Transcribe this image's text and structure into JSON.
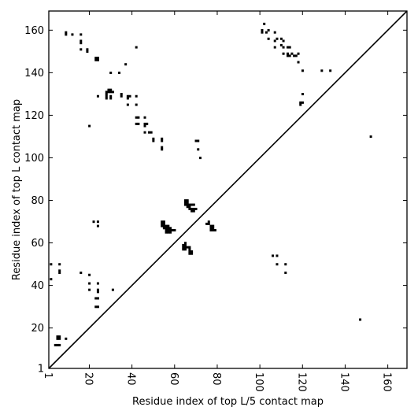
{
  "chart_data": {
    "type": "scatter",
    "title": "",
    "xlabel": "Residue index of top L/5 contact map",
    "ylabel": "Residue index of top L contact map",
    "xlim": [
      1,
      169
    ],
    "ylim": [
      1,
      169
    ],
    "xticks": [
      1,
      20,
      40,
      60,
      80,
      100,
      120,
      140,
      160
    ],
    "yticks": [
      1,
      20,
      40,
      60,
      80,
      100,
      120,
      140,
      160
    ],
    "grid": false,
    "diagonal": true,
    "marker": "square",
    "color": "#000000",
    "points": [
      [
        9,
        159
      ],
      [
        9,
        158
      ],
      [
        12,
        158
      ],
      [
        16,
        158
      ],
      [
        16,
        155
      ],
      [
        16,
        154
      ],
      [
        16,
        151
      ],
      [
        19,
        151
      ],
      [
        19,
        150
      ],
      [
        23,
        147
      ],
      [
        24,
        147
      ],
      [
        23,
        146
      ],
      [
        24,
        146
      ],
      [
        30,
        140
      ],
      [
        34,
        140
      ],
      [
        37,
        144
      ],
      [
        42,
        152
      ],
      [
        101,
        160
      ],
      [
        101,
        159
      ],
      [
        102,
        163
      ],
      [
        103,
        159
      ],
      [
        104,
        160
      ],
      [
        104,
        156
      ],
      [
        107,
        159
      ],
      [
        107,
        155
      ],
      [
        108,
        156
      ],
      [
        107,
        152
      ],
      [
        110,
        156
      ],
      [
        111,
        155
      ],
      [
        110,
        153
      ],
      [
        111,
        152
      ],
      [
        113,
        152
      ],
      [
        114,
        152
      ],
      [
        111,
        149
      ],
      [
        113,
        149
      ],
      [
        113,
        148
      ],
      [
        114,
        148
      ],
      [
        115,
        149
      ],
      [
        116,
        148
      ],
      [
        117,
        148
      ],
      [
        118,
        149
      ],
      [
        118,
        145
      ],
      [
        120,
        141
      ],
      [
        129,
        141
      ],
      [
        133,
        141
      ],
      [
        24,
        129
      ],
      [
        28,
        131
      ],
      [
        28,
        130
      ],
      [
        28,
        129
      ],
      [
        28,
        128
      ],
      [
        29,
        132
      ],
      [
        29,
        131
      ],
      [
        30,
        132
      ],
      [
        30,
        131
      ],
      [
        31,
        131
      ],
      [
        30,
        129
      ],
      [
        30,
        128
      ],
      [
        35,
        130
      ],
      [
        35,
        129
      ],
      [
        38,
        129
      ],
      [
        38,
        128
      ],
      [
        39,
        129
      ],
      [
        38,
        125
      ],
      [
        42,
        129
      ],
      [
        42,
        125
      ],
      [
        42,
        119
      ],
      [
        43,
        119
      ],
      [
        42,
        116
      ],
      [
        43,
        116
      ],
      [
        46,
        119
      ],
      [
        46,
        116
      ],
      [
        47,
        116
      ],
      [
        46,
        115
      ],
      [
        46,
        112
      ],
      [
        48,
        112
      ],
      [
        49,
        112
      ],
      [
        50,
        109
      ],
      [
        50,
        108
      ],
      [
        54,
        109
      ],
      [
        54,
        108
      ],
      [
        54,
        105
      ],
      [
        54,
        104
      ],
      [
        20,
        115
      ],
      [
        120,
        130
      ],
      [
        119,
        126
      ],
      [
        120,
        126
      ],
      [
        119,
        125
      ],
      [
        152,
        110
      ],
      [
        70,
        108
      ],
      [
        71,
        108
      ],
      [
        71,
        104
      ],
      [
        72,
        100
      ],
      [
        65,
        80
      ],
      [
        66,
        80
      ],
      [
        65,
        79
      ],
      [
        66,
        79
      ],
      [
        65,
        78
      ],
      [
        66,
        78
      ],
      [
        66,
        77
      ],
      [
        67,
        78
      ],
      [
        68,
        78
      ],
      [
        69,
        78
      ],
      [
        67,
        77
      ],
      [
        67,
        76
      ],
      [
        68,
        76
      ],
      [
        69,
        76
      ],
      [
        70,
        76
      ],
      [
        68,
        75
      ],
      [
        69,
        75
      ],
      [
        54,
        70
      ],
      [
        55,
        70
      ],
      [
        54,
        69
      ],
      [
        55,
        69
      ],
      [
        54,
        68
      ],
      [
        55,
        68
      ],
      [
        56,
        68
      ],
      [
        57,
        68
      ],
      [
        55,
        67
      ],
      [
        56,
        67
      ],
      [
        57,
        67
      ],
      [
        58,
        67
      ],
      [
        56,
        66
      ],
      [
        57,
        66
      ],
      [
        58,
        66
      ],
      [
        59,
        66
      ],
      [
        60,
        66
      ],
      [
        56,
        65
      ],
      [
        57,
        65
      ],
      [
        58,
        65
      ],
      [
        76,
        70
      ],
      [
        75,
        69
      ],
      [
        76,
        69
      ],
      [
        77,
        68
      ],
      [
        78,
        68
      ],
      [
        77,
        67
      ],
      [
        78,
        67
      ],
      [
        77,
        66
      ],
      [
        78,
        66
      ],
      [
        79,
        66
      ],
      [
        22,
        70
      ],
      [
        24,
        70
      ],
      [
        24,
        68
      ],
      [
        65,
        60
      ],
      [
        64,
        59
      ],
      [
        65,
        59
      ],
      [
        64,
        58
      ],
      [
        65,
        58
      ],
      [
        66,
        58
      ],
      [
        67,
        58
      ],
      [
        64,
        57
      ],
      [
        65,
        57
      ],
      [
        67,
        57
      ],
      [
        67,
        56
      ],
      [
        68,
        56
      ],
      [
        67,
        55
      ],
      [
        68,
        55
      ],
      [
        2,
        50
      ],
      [
        6,
        50
      ],
      [
        6,
        47
      ],
      [
        6,
        46
      ],
      [
        2,
        43
      ],
      [
        16,
        46
      ],
      [
        20,
        45
      ],
      [
        20,
        41
      ],
      [
        24,
        41
      ],
      [
        20,
        38
      ],
      [
        24,
        38
      ],
      [
        24,
        37
      ],
      [
        31,
        38
      ],
      [
        23,
        34
      ],
      [
        24,
        34
      ],
      [
        23,
        30
      ],
      [
        24,
        30
      ],
      [
        5,
        16
      ],
      [
        6,
        16
      ],
      [
        5,
        15
      ],
      [
        6,
        15
      ],
      [
        9,
        15
      ],
      [
        5,
        12
      ],
      [
        6,
        12
      ],
      [
        4,
        12
      ],
      [
        106,
        54
      ],
      [
        108,
        54
      ],
      [
        108,
        50
      ],
      [
        112,
        50
      ],
      [
        112,
        46
      ],
      [
        147,
        24
      ]
    ]
  }
}
